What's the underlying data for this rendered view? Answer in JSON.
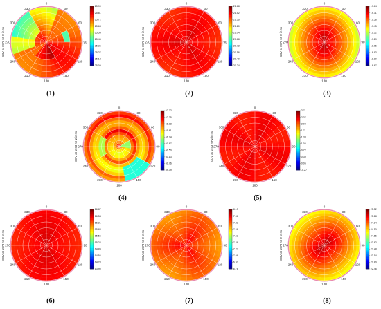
{
  "chart_data": [
    {
      "type": "heatmap",
      "panel_label": "(1)",
      "ylabel": "GDV at 1573 MHz in ns",
      "colorbar_ticks": [
        "25.90",
        "25.81",
        "25.72",
        "25.63",
        "25.54",
        "25.45",
        "25.36",
        "25.27",
        "25.18",
        "25.09"
      ],
      "angle_labels": [
        "0",
        "30",
        "60",
        "90",
        "120",
        "150",
        "180",
        "210",
        "240",
        "270",
        "300",
        "330"
      ]
    },
    {
      "type": "heatmap",
      "panel_label": "(2)",
      "ylabel": "GDV at 1573 MHz in ns",
      "colorbar_ticks": [
        "21.68",
        "21.52",
        "21.36",
        "21.20",
        "21.04",
        "20.88",
        "20.72",
        "20.56",
        "20.40",
        "20.24"
      ],
      "angle_labels": [
        "0",
        "30",
        "60",
        "90",
        "120",
        "150",
        "180",
        "210",
        "240",
        "270",
        "300",
        "330"
      ]
    },
    {
      "type": "heatmap",
      "panel_label": "(3)",
      "ylabel": "GDV at 1573 MHz in ns",
      "colorbar_ticks": [
        "19.84",
        "19.71",
        "19.58",
        "19.45",
        "19.32",
        "19.19",
        "19.06",
        "18.93",
        "18.80",
        "18.67"
      ],
      "angle_labels": [
        "0",
        "30",
        "60",
        "90",
        "120",
        "150",
        "180",
        "210",
        "240",
        "270",
        "300",
        "330"
      ]
    },
    {
      "type": "heatmap",
      "panel_label": "(4)",
      "ylabel": "GDV at 1573 MHz in ns",
      "colorbar_ticks": [
        "62.72",
        "62.35",
        "61.98",
        "61.61",
        "61.24",
        "60.87",
        "60.50",
        "60.13",
        "59.76",
        "59.39"
      ],
      "angle_labels": [
        "0",
        "30",
        "60",
        "90",
        "120",
        "150",
        "180",
        "210",
        "240",
        "270",
        "300",
        "330"
      ]
    },
    {
      "type": "heatmap",
      "panel_label": "(5)",
      "ylabel": "GDV at 1573 MHz in ns",
      "colorbar_ticks": [
        "2.7",
        "2.37",
        "2.04",
        "1.71",
        "1.38",
        "1.05",
        "0.72",
        "0.39",
        "0.06",
        "-0.27"
      ],
      "angle_labels": [
        "0",
        "30",
        "60",
        "90",
        "120",
        "150",
        "180",
        "210",
        "240",
        "270",
        "300",
        "330"
      ]
    },
    {
      "type": "heatmap",
      "panel_label": "(6)",
      "ylabel": "GDV at 1573 MHz in ns",
      "colorbar_ticks": [
        "16.87",
        "16.54",
        "16.21",
        "15.88",
        "15.55",
        "15.22",
        "14.89",
        "14.56",
        "14.23",
        "13.90"
      ],
      "angle_labels": [
        "0",
        "30",
        "60",
        "90",
        "120",
        "150",
        "180",
        "210",
        "240",
        "270",
        "300",
        "330"
      ]
    },
    {
      "type": "heatmap",
      "panel_label": "(7)",
      "ylabel": "GDV at 1573 MHz in ns",
      "colorbar_ticks": [
        "8.13",
        "7.98",
        "7.83",
        "7.68",
        "7.53",
        "7.38",
        "7.23",
        "7.08",
        "6.93",
        "6.78"
      ],
      "angle_labels": [
        "0",
        "30",
        "60",
        "90",
        "120",
        "150",
        "180",
        "210",
        "240",
        "270",
        "300",
        "330"
      ]
    },
    {
      "type": "heatmap",
      "panel_label": "(8)",
      "ylabel": "GDV at 1573 MHz in ns",
      "colorbar_ticks": [
        "25.52",
        "25.18",
        "24.84",
        "24.50",
        "24.16",
        "23.82",
        "23.48",
        "23.14",
        "22.80",
        "22.46"
      ],
      "angle_labels": [
        "0",
        "30",
        "60",
        "90",
        "120",
        "150",
        "180",
        "210",
        "240",
        "270",
        "300",
        "330"
      ]
    }
  ]
}
